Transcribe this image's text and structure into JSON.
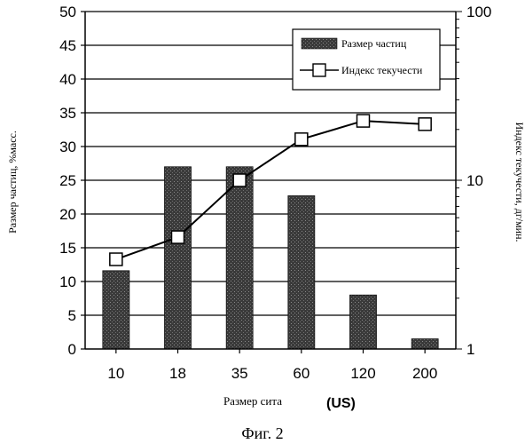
{
  "chart_data": {
    "type": "bar",
    "categories": [
      "10",
      "18",
      "35",
      "60",
      "120",
      "200"
    ],
    "series": [
      {
        "name": "Размер частиц",
        "type": "bar",
        "axis": "left",
        "values": [
          11.6,
          27.0,
          27.0,
          22.7,
          8.0,
          1.5
        ]
      },
      {
        "name": "Индекс текучести",
        "type": "line",
        "axis": "right",
        "marker": "square",
        "values": [
          3.4,
          4.6,
          10.0,
          17.5,
          22.5,
          21.5
        ]
      }
    ],
    "xlabel": "Размер сита",
    "xlabel_unit": "(US)",
    "ylabel": "Размер частиц, %масс.",
    "ylabel_right": "Индекс текучести, дг/мин.",
    "ylim": [
      0,
      50
    ],
    "ylim_right": [
      1,
      100
    ],
    "y_right_scale": "log",
    "yticks": [
      "0",
      "5",
      "10",
      "15",
      "20",
      "25",
      "30",
      "35",
      "40",
      "45",
      "50"
    ],
    "yticks_right": [
      "1",
      "10",
      "100"
    ],
    "grid": "horizontal",
    "legend_position": "top-right",
    "colors": {
      "bar": "#3a3a3a",
      "line": "#000000",
      "marker_fill": "#ffffff"
    }
  },
  "caption": "Фиг. 2"
}
